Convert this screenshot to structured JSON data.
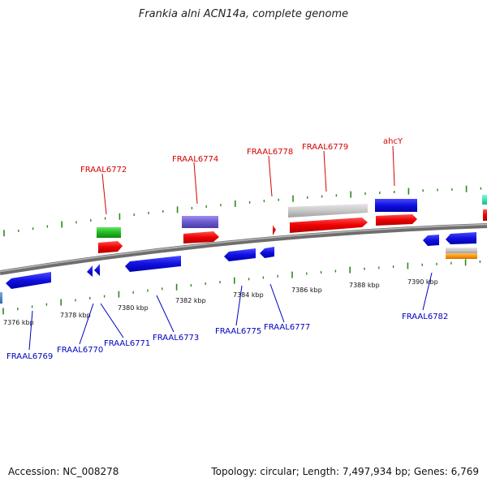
{
  "title": "Frankia alni ACN14a, complete genome",
  "accession_text": "Accession: NC_008278",
  "summary_text": "Topology: circular; Length: 7,497,934 bp; Genes: 6,769",
  "colors": {
    "backbone": "#8a8a8a",
    "tick": "#2a8a1a",
    "label_forward": "#d40000",
    "label_reverse": "#0000c0"
  },
  "scale_labels": [
    "7376 kbp",
    "7378 kbp",
    "7380 kbp",
    "7382 kbp",
    "7384 kbp",
    "7386 kbp",
    "7388 kbp",
    "7390 kbp"
  ],
  "forward_labels": [
    "FRAAL6772",
    "FRAAL6774",
    "FRAAL6778",
    "FRAAL6779",
    "ahcY"
  ],
  "reverse_labels": [
    "FRAAL6769",
    "FRAAL6770",
    "FRAAL6771",
    "FRAAL6773",
    "FRAAL6775",
    "FRAAL6777",
    "FRAAL6782"
  ]
}
